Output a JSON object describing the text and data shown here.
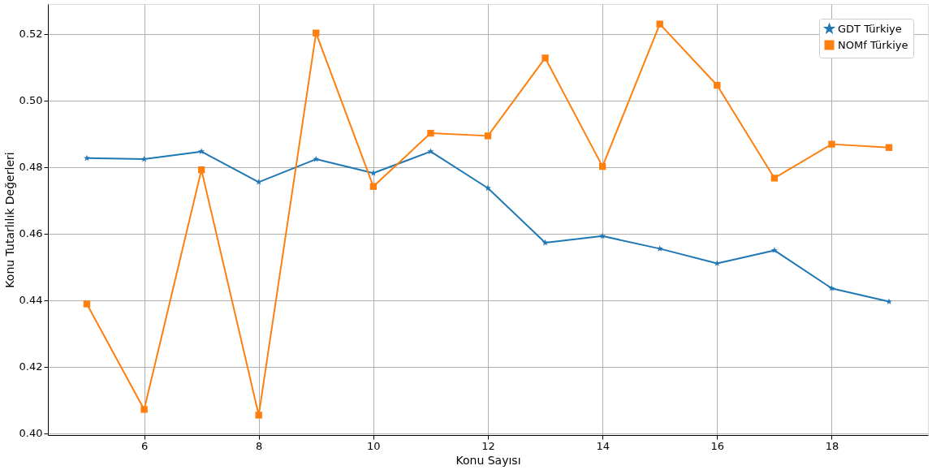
{
  "chart_data": {
    "type": "line",
    "xlabel": "Konu Sayısı",
    "ylabel": "Konu Tutarlılık Değerleri",
    "x": [
      5,
      6,
      7,
      8,
      9,
      10,
      11,
      12,
      13,
      14,
      15,
      16,
      17,
      18,
      19
    ],
    "series": [
      {
        "name": "GDT Türkiye",
        "color": "#1f77b4",
        "marker": "star",
        "values": [
          0.4827,
          0.4824,
          0.4847,
          0.4755,
          0.4824,
          0.4782,
          0.4847,
          0.4737,
          0.4573,
          0.4593,
          0.4555,
          0.4511,
          0.455,
          0.4436,
          0.4396
        ]
      },
      {
        "name": "NOMf Türkiye",
        "color": "#ff7f0e",
        "marker": "square",
        "values": [
          0.4389,
          0.4072,
          0.4792,
          0.4055,
          0.5203,
          0.4742,
          0.4902,
          0.4894,
          0.5128,
          0.4802,
          0.523,
          0.5046,
          0.4767,
          0.4869,
          0.4859
        ]
      }
    ],
    "xlim": [
      4.32,
      19.68
    ],
    "xticks": [
      6,
      8,
      10,
      12,
      14,
      16,
      18
    ],
    "ylim": [
      0.3995,
      0.529
    ],
    "yticks": [
      {
        "value": 0.4,
        "label": "0.40"
      },
      0.42,
      0.44,
      0.46,
      0.48,
      {
        "value": 0.5,
        "label": "0.50"
      },
      0.52
    ],
    "grid": true,
    "legend": "top right",
    "line_style": "solid"
  }
}
